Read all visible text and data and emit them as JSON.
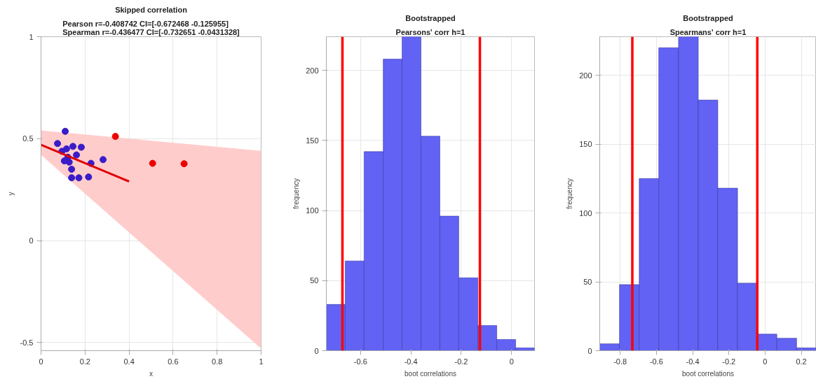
{
  "chart_data": [
    {
      "type": "scatter",
      "title": "Skipped correlation",
      "subtitle": "Pearson r=-0.408742 CI=[-0.672468 -0.125955]\nSpearman r=-0.436477 CI=[-0.732651 -0.0431328]",
      "xlabel": "x",
      "ylabel": "y",
      "xlim": [
        0,
        1
      ],
      "ylim": [
        -0.54,
        1
      ],
      "xticks": [
        0,
        0.2,
        0.4,
        0.6,
        0.8,
        1
      ],
      "yticks": [
        -0.5,
        0,
        0.5,
        1
      ],
      "grid": true,
      "series": [
        {
          "type": "line",
          "color": "#ffcccc",
          "x": [
            0,
            1
          ],
          "values": [
            null,
            null
          ],
          "lower": [
            0.42,
            -0.53
          ],
          "upper": [
            0.54,
            0.44
          ]
        },
        {
          "type": "scatter",
          "marker": "circle",
          "color": "#3a1cc8",
          "x": [
            0.11,
            0.075,
            0.116,
            0.145,
            0.183,
            0.161,
            0.106,
            0.128,
            0.139,
            0.227,
            0.282,
            0.139,
            0.172,
            0.216,
            0.095,
            0.122
          ],
          "values": [
            0.536,
            0.476,
            0.45,
            0.462,
            0.458,
            0.42,
            0.391,
            0.385,
            0.35,
            0.379,
            0.397,
            0.308,
            0.308,
            0.312,
            0.438,
            0.409
          ]
        },
        {
          "type": "scatter",
          "marker": "circle",
          "color": "#ee0000",
          "x": [
            0.338,
            0.507,
            0.65
          ],
          "values": [
            0.511,
            0.379,
            0.377
          ]
        },
        {
          "type": "line",
          "color": "#e00000",
          "x": [
            0,
            0.4
          ],
          "values": [
            0.47,
            0.29
          ]
        }
      ]
    },
    {
      "type": "histogram",
      "title": "Bootstrapped",
      "subtitle": "Pearsons' corr h=1",
      "xlabel": "boot correlations",
      "ylabel": "frequency",
      "color": "#6262f4",
      "xlim": [
        -0.736,
        0.091
      ],
      "ylim": [
        0,
        224
      ],
      "xticks": [
        -0.6,
        -0.4,
        -0.2,
        0
      ],
      "yticks": [
        0,
        50,
        100,
        150,
        200
      ],
      "grid": true,
      "bins": [
        -0.736,
        -0.661,
        -0.586,
        -0.51,
        -0.435,
        -0.36,
        -0.285,
        -0.21,
        -0.134,
        -0.059,
        0.016,
        0.091
      ],
      "values": [
        33,
        64,
        142,
        208,
        224,
        153,
        96,
        52,
        18,
        8,
        2
      ],
      "ref_lines": [
        {
          "axis": "x",
          "value": -0.672,
          "color": "#ff0000"
        },
        {
          "axis": "x",
          "value": -0.126,
          "color": "#ff0000"
        }
      ]
    },
    {
      "type": "histogram",
      "title": "Bootstrapped",
      "subtitle": "Spearmans' corr h=1",
      "xlabel": "boot correlations",
      "ylabel": "frequency",
      "color": "#6262f4",
      "xlim": [
        -0.913,
        0.283
      ],
      "ylim": [
        0,
        228
      ],
      "xticks": [
        -0.8,
        -0.6,
        -0.4,
        -0.2,
        0,
        0.2
      ],
      "yticks": [
        0,
        50,
        100,
        150,
        200
      ],
      "grid": true,
      "bins": [
        -0.913,
        -0.804,
        -0.695,
        -0.587,
        -0.478,
        -0.369,
        -0.261,
        -0.152,
        -0.043,
        0.065,
        0.174,
        0.283
      ],
      "values": [
        5,
        48,
        125,
        220,
        228,
        182,
        118,
        49,
        12,
        9,
        2
      ],
      "ref_lines": [
        {
          "axis": "x",
          "value": -0.733,
          "color": "#ff0000"
        },
        {
          "axis": "x",
          "value": -0.043,
          "color": "#ff0000"
        }
      ]
    }
  ]
}
